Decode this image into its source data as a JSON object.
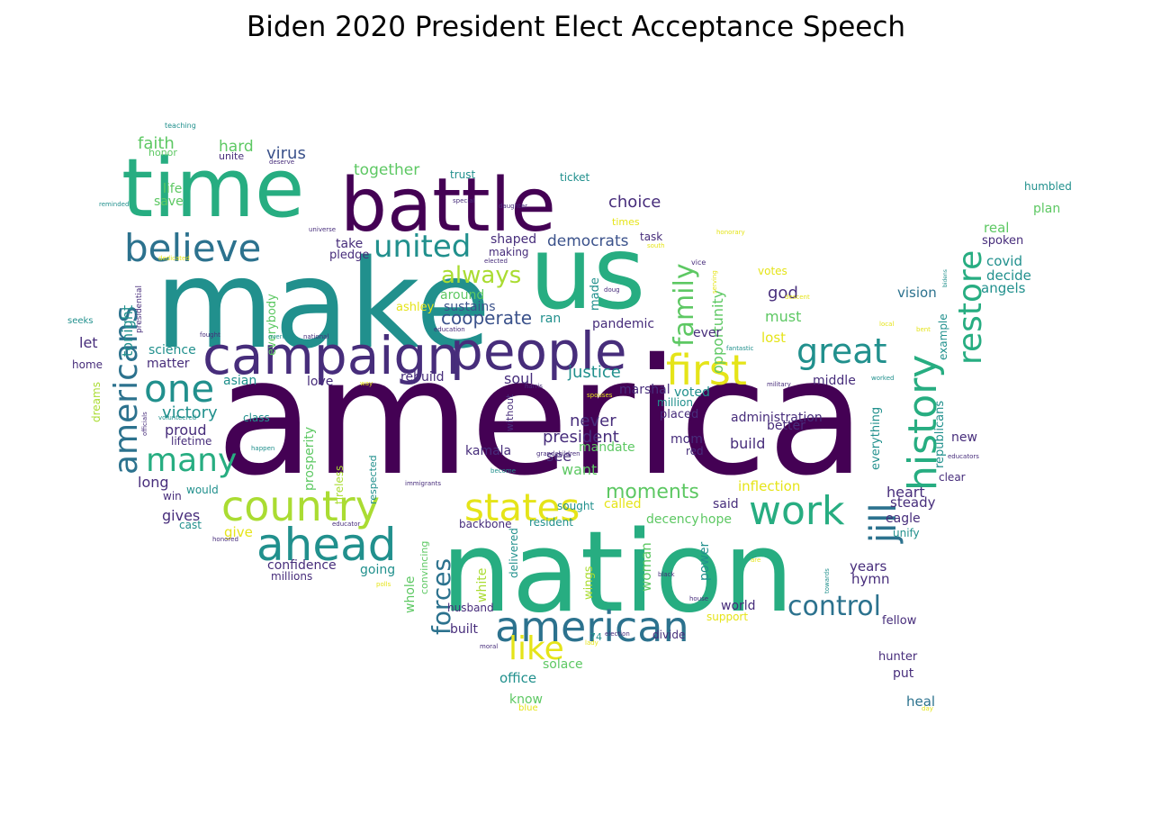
{
  "title": "Biden 2020 President Elect Acceptance Speech",
  "palette": {
    "purple": "#440154",
    "indigo": "#472d7b",
    "blue": "#3b528b",
    "steel": "#2c728e",
    "teal": "#21908d",
    "sea": "#27ad81",
    "green": "#5dc863",
    "lime": "#aadc32",
    "yellow": "#e5e419"
  },
  "words": [
    {
      "text": "america",
      "color": "purple"
    },
    {
      "text": "make",
      "color": "teal"
    },
    {
      "text": "us",
      "color": "sea"
    },
    {
      "text": "nation",
      "color": "sea"
    },
    {
      "text": "time",
      "color": "sea"
    },
    {
      "text": "battle",
      "color": "purple"
    },
    {
      "text": "campaign",
      "color": "indigo"
    },
    {
      "text": "people",
      "color": "indigo"
    },
    {
      "text": "country",
      "color": "lime"
    },
    {
      "text": "american",
      "color": "steel"
    },
    {
      "text": "believe",
      "color": "steel"
    },
    {
      "text": "ahead",
      "color": "teal"
    },
    {
      "text": "states",
      "color": "yellow"
    },
    {
      "text": "first",
      "color": "yellow"
    },
    {
      "text": "history",
      "color": "sea"
    },
    {
      "text": "work",
      "color": "sea"
    },
    {
      "text": "one",
      "color": "teal"
    },
    {
      "text": "united",
      "color": "teal"
    },
    {
      "text": "americans",
      "color": "steel"
    },
    {
      "text": "restore",
      "color": "sea"
    },
    {
      "text": "great",
      "color": "teal"
    },
    {
      "text": "many",
      "color": "sea"
    },
    {
      "text": "jill",
      "color": "steel"
    },
    {
      "text": "family",
      "color": "green"
    },
    {
      "text": "like",
      "color": "yellow"
    },
    {
      "text": "forces",
      "color": "steel"
    },
    {
      "text": "control",
      "color": "steel"
    },
    {
      "text": "always",
      "color": "lime"
    },
    {
      "text": "moments",
      "color": "green"
    },
    {
      "text": "cooperate",
      "color": "blue"
    },
    {
      "text": "faith",
      "color": "green"
    },
    {
      "text": "hard",
      "color": "green"
    },
    {
      "text": "virus",
      "color": "blue"
    },
    {
      "text": "together",
      "color": "green"
    },
    {
      "text": "choice",
      "color": "indigo"
    },
    {
      "text": "democrats",
      "color": "blue"
    },
    {
      "text": "opportunity",
      "color": "green"
    },
    {
      "text": "victory",
      "color": "teal"
    },
    {
      "text": "tonight",
      "color": "teal"
    },
    {
      "text": "never",
      "color": "indigo"
    },
    {
      "text": "president",
      "color": "indigo"
    },
    {
      "text": "justice",
      "color": "teal"
    },
    {
      "text": "god",
      "color": "indigo"
    },
    {
      "text": "must",
      "color": "green"
    },
    {
      "text": "vision",
      "color": "steel"
    },
    {
      "text": "covid",
      "color": "teal"
    },
    {
      "text": "decide",
      "color": "teal"
    },
    {
      "text": "angels",
      "color": "teal"
    },
    {
      "text": "real",
      "color": "green"
    },
    {
      "text": "spoken",
      "color": "indigo"
    },
    {
      "text": "plan",
      "color": "green"
    },
    {
      "text": "humbled",
      "color": "teal"
    },
    {
      "text": "life",
      "color": "green"
    },
    {
      "text": "save",
      "color": "green"
    },
    {
      "text": "trust",
      "color": "teal"
    },
    {
      "text": "ticket",
      "color": "teal"
    },
    {
      "text": "times",
      "color": "yellow"
    },
    {
      "text": "task",
      "color": "indigo"
    },
    {
      "text": "making",
      "color": "indigo"
    },
    {
      "text": "shaped",
      "color": "indigo"
    },
    {
      "text": "take",
      "color": "indigo"
    },
    {
      "text": "pledge",
      "color": "indigo"
    },
    {
      "text": "around",
      "color": "green"
    },
    {
      "text": "sustains",
      "color": "blue"
    },
    {
      "text": "ran",
      "color": "teal"
    },
    {
      "text": "made",
      "color": "teal"
    },
    {
      "text": "pandemic",
      "color": "indigo"
    },
    {
      "text": "ever",
      "color": "indigo"
    },
    {
      "text": "votes",
      "color": "yellow"
    },
    {
      "text": "ashley",
      "color": "yellow"
    },
    {
      "text": "everybody",
      "color": "green"
    },
    {
      "text": "science",
      "color": "teal"
    },
    {
      "text": "let",
      "color": "indigo"
    },
    {
      "text": "matter",
      "color": "indigo"
    },
    {
      "text": "home",
      "color": "indigo"
    },
    {
      "text": "asian",
      "color": "teal"
    },
    {
      "text": "love",
      "color": "indigo"
    },
    {
      "text": "soul",
      "color": "indigo"
    },
    {
      "text": "rebuild",
      "color": "indigo"
    },
    {
      "text": "marshal",
      "color": "indigo"
    },
    {
      "text": "lost",
      "color": "yellow"
    },
    {
      "text": "better",
      "color": "indigo"
    },
    {
      "text": "middle",
      "color": "indigo"
    },
    {
      "text": "million",
      "color": "teal"
    },
    {
      "text": "voted",
      "color": "teal"
    },
    {
      "text": "placed",
      "color": "indigo"
    },
    {
      "text": "administration",
      "color": "indigo"
    },
    {
      "text": "build",
      "color": "indigo"
    },
    {
      "text": "proud",
      "color": "indigo"
    },
    {
      "text": "lifetime",
      "color": "indigo"
    },
    {
      "text": "class",
      "color": "teal"
    },
    {
      "text": "prosperity",
      "color": "green"
    },
    {
      "text": "tireless",
      "color": "lime"
    },
    {
      "text": "respected",
      "color": "teal"
    },
    {
      "text": "without",
      "color": "indigo"
    },
    {
      "text": "kamala",
      "color": "indigo"
    },
    {
      "text": "see",
      "color": "indigo"
    },
    {
      "text": "mandate",
      "color": "green"
    },
    {
      "text": "want",
      "color": "green"
    },
    {
      "text": "mom",
      "color": "indigo"
    },
    {
      "text": "red",
      "color": "indigo"
    },
    {
      "text": "everything",
      "color": "teal"
    },
    {
      "text": "republicans",
      "color": "teal"
    },
    {
      "text": "example",
      "color": "teal"
    },
    {
      "text": "new",
      "color": "indigo"
    },
    {
      "text": "clear",
      "color": "indigo"
    },
    {
      "text": "heart",
      "color": "indigo"
    },
    {
      "text": "steady",
      "color": "indigo"
    },
    {
      "text": "eagle",
      "color": "indigo"
    },
    {
      "text": "unify",
      "color": "teal"
    },
    {
      "text": "dreams",
      "color": "lime"
    },
    {
      "text": "long",
      "color": "indigo"
    },
    {
      "text": "would",
      "color": "teal"
    },
    {
      "text": "win",
      "color": "indigo"
    },
    {
      "text": "gives",
      "color": "indigo"
    },
    {
      "text": "cast",
      "color": "teal"
    },
    {
      "text": "give",
      "color": "yellow"
    },
    {
      "text": "confidence",
      "color": "indigo"
    },
    {
      "text": "millions",
      "color": "indigo"
    },
    {
      "text": "going",
      "color": "teal"
    },
    {
      "text": "backbone",
      "color": "indigo"
    },
    {
      "text": "resident",
      "color": "teal"
    },
    {
      "text": "called",
      "color": "yellow"
    },
    {
      "text": "decency",
      "color": "green"
    },
    {
      "text": "hope",
      "color": "green"
    },
    {
      "text": "said",
      "color": "indigo"
    },
    {
      "text": "inflection",
      "color": "yellow"
    },
    {
      "text": "sought",
      "color": "teal"
    },
    {
      "text": "woman",
      "color": "green"
    },
    {
      "text": "power",
      "color": "teal"
    },
    {
      "text": "years",
      "color": "indigo"
    },
    {
      "text": "hymn",
      "color": "indigo"
    },
    {
      "text": "world",
      "color": "indigo"
    },
    {
      "text": "support",
      "color": "yellow"
    },
    {
      "text": "fellow",
      "color": "indigo"
    },
    {
      "text": "whole",
      "color": "green"
    },
    {
      "text": "convincing",
      "color": "green"
    },
    {
      "text": "white",
      "color": "lime"
    },
    {
      "text": "delivered",
      "color": "teal"
    },
    {
      "text": "wings",
      "color": "lime"
    },
    {
      "text": "husband",
      "color": "indigo"
    },
    {
      "text": "built",
      "color": "indigo"
    },
    {
      "text": "divide",
      "color": "indigo"
    },
    {
      "text": "74",
      "color": "teal"
    },
    {
      "text": "solace",
      "color": "green"
    },
    {
      "text": "office",
      "color": "teal"
    },
    {
      "text": "know",
      "color": "green"
    },
    {
      "text": "blue",
      "color": "yellow"
    },
    {
      "text": "hunter",
      "color": "indigo"
    },
    {
      "text": "put",
      "color": "indigo"
    },
    {
      "text": "heal",
      "color": "steel"
    },
    {
      "text": "seeks",
      "color": "teal"
    },
    {
      "text": "honor",
      "color": "green"
    },
    {
      "text": "unite",
      "color": "indigo"
    },
    {
      "text": "teaching",
      "color": "teal"
    },
    {
      "text": "deserve",
      "color": "indigo"
    },
    {
      "text": "reminded",
      "color": "teal"
    },
    {
      "text": "special",
      "color": "indigo"
    },
    {
      "text": "daughter",
      "color": "indigo"
    },
    {
      "text": "universe",
      "color": "indigo"
    },
    {
      "text": "elected",
      "color": "indigo"
    },
    {
      "text": "south",
      "color": "yellow"
    },
    {
      "text": "honorary",
      "color": "yellow"
    },
    {
      "text": "vice",
      "color": "indigo"
    },
    {
      "text": "serving",
      "color": "yellow"
    },
    {
      "text": "doug",
      "color": "indigo"
    },
    {
      "text": "descent",
      "color": "yellow"
    },
    {
      "text": "presidential",
      "color": "indigo"
    },
    {
      "text": "dedicated",
      "color": "yellow"
    },
    {
      "text": "fought",
      "color": "indigo"
    },
    {
      "text": "overdue",
      "color": "teal"
    },
    {
      "text": "national",
      "color": "indigo"
    },
    {
      "text": "education",
      "color": "indigo"
    },
    {
      "text": "fantastic",
      "color": "teal"
    },
    {
      "text": "local",
      "color": "yellow"
    },
    {
      "text": "bent",
      "color": "yellow"
    },
    {
      "text": "way",
      "color": "yellow"
    },
    {
      "text": "harris",
      "color": "indigo"
    },
    {
      "text": "spouses",
      "color": "yellow"
    },
    {
      "text": "military",
      "color": "indigo"
    },
    {
      "text": "worked",
      "color": "teal"
    },
    {
      "text": "bidens",
      "color": "teal"
    },
    {
      "text": "officials",
      "color": "indigo"
    },
    {
      "text": "volunteered",
      "color": "teal"
    },
    {
      "text": "happen",
      "color": "teal"
    },
    {
      "text": "become",
      "color": "teal"
    },
    {
      "text": "grandchildren",
      "color": "indigo"
    },
    {
      "text": "educators",
      "color": "indigo"
    },
    {
      "text": "immigrants",
      "color": "indigo"
    },
    {
      "text": "educator",
      "color": "indigo"
    },
    {
      "text": "honored",
      "color": "indigo"
    },
    {
      "text": "polls",
      "color": "yellow"
    },
    {
      "text": "are",
      "color": "yellow"
    },
    {
      "text": "towards",
      "color": "teal"
    },
    {
      "text": "black",
      "color": "indigo"
    },
    {
      "text": "house",
      "color": "indigo"
    },
    {
      "text": "election",
      "color": "indigo"
    },
    {
      "text": "lady",
      "color": "yellow"
    },
    {
      "text": "moral",
      "color": "indigo"
    },
    {
      "text": "day",
      "color": "yellow"
    }
  ]
}
